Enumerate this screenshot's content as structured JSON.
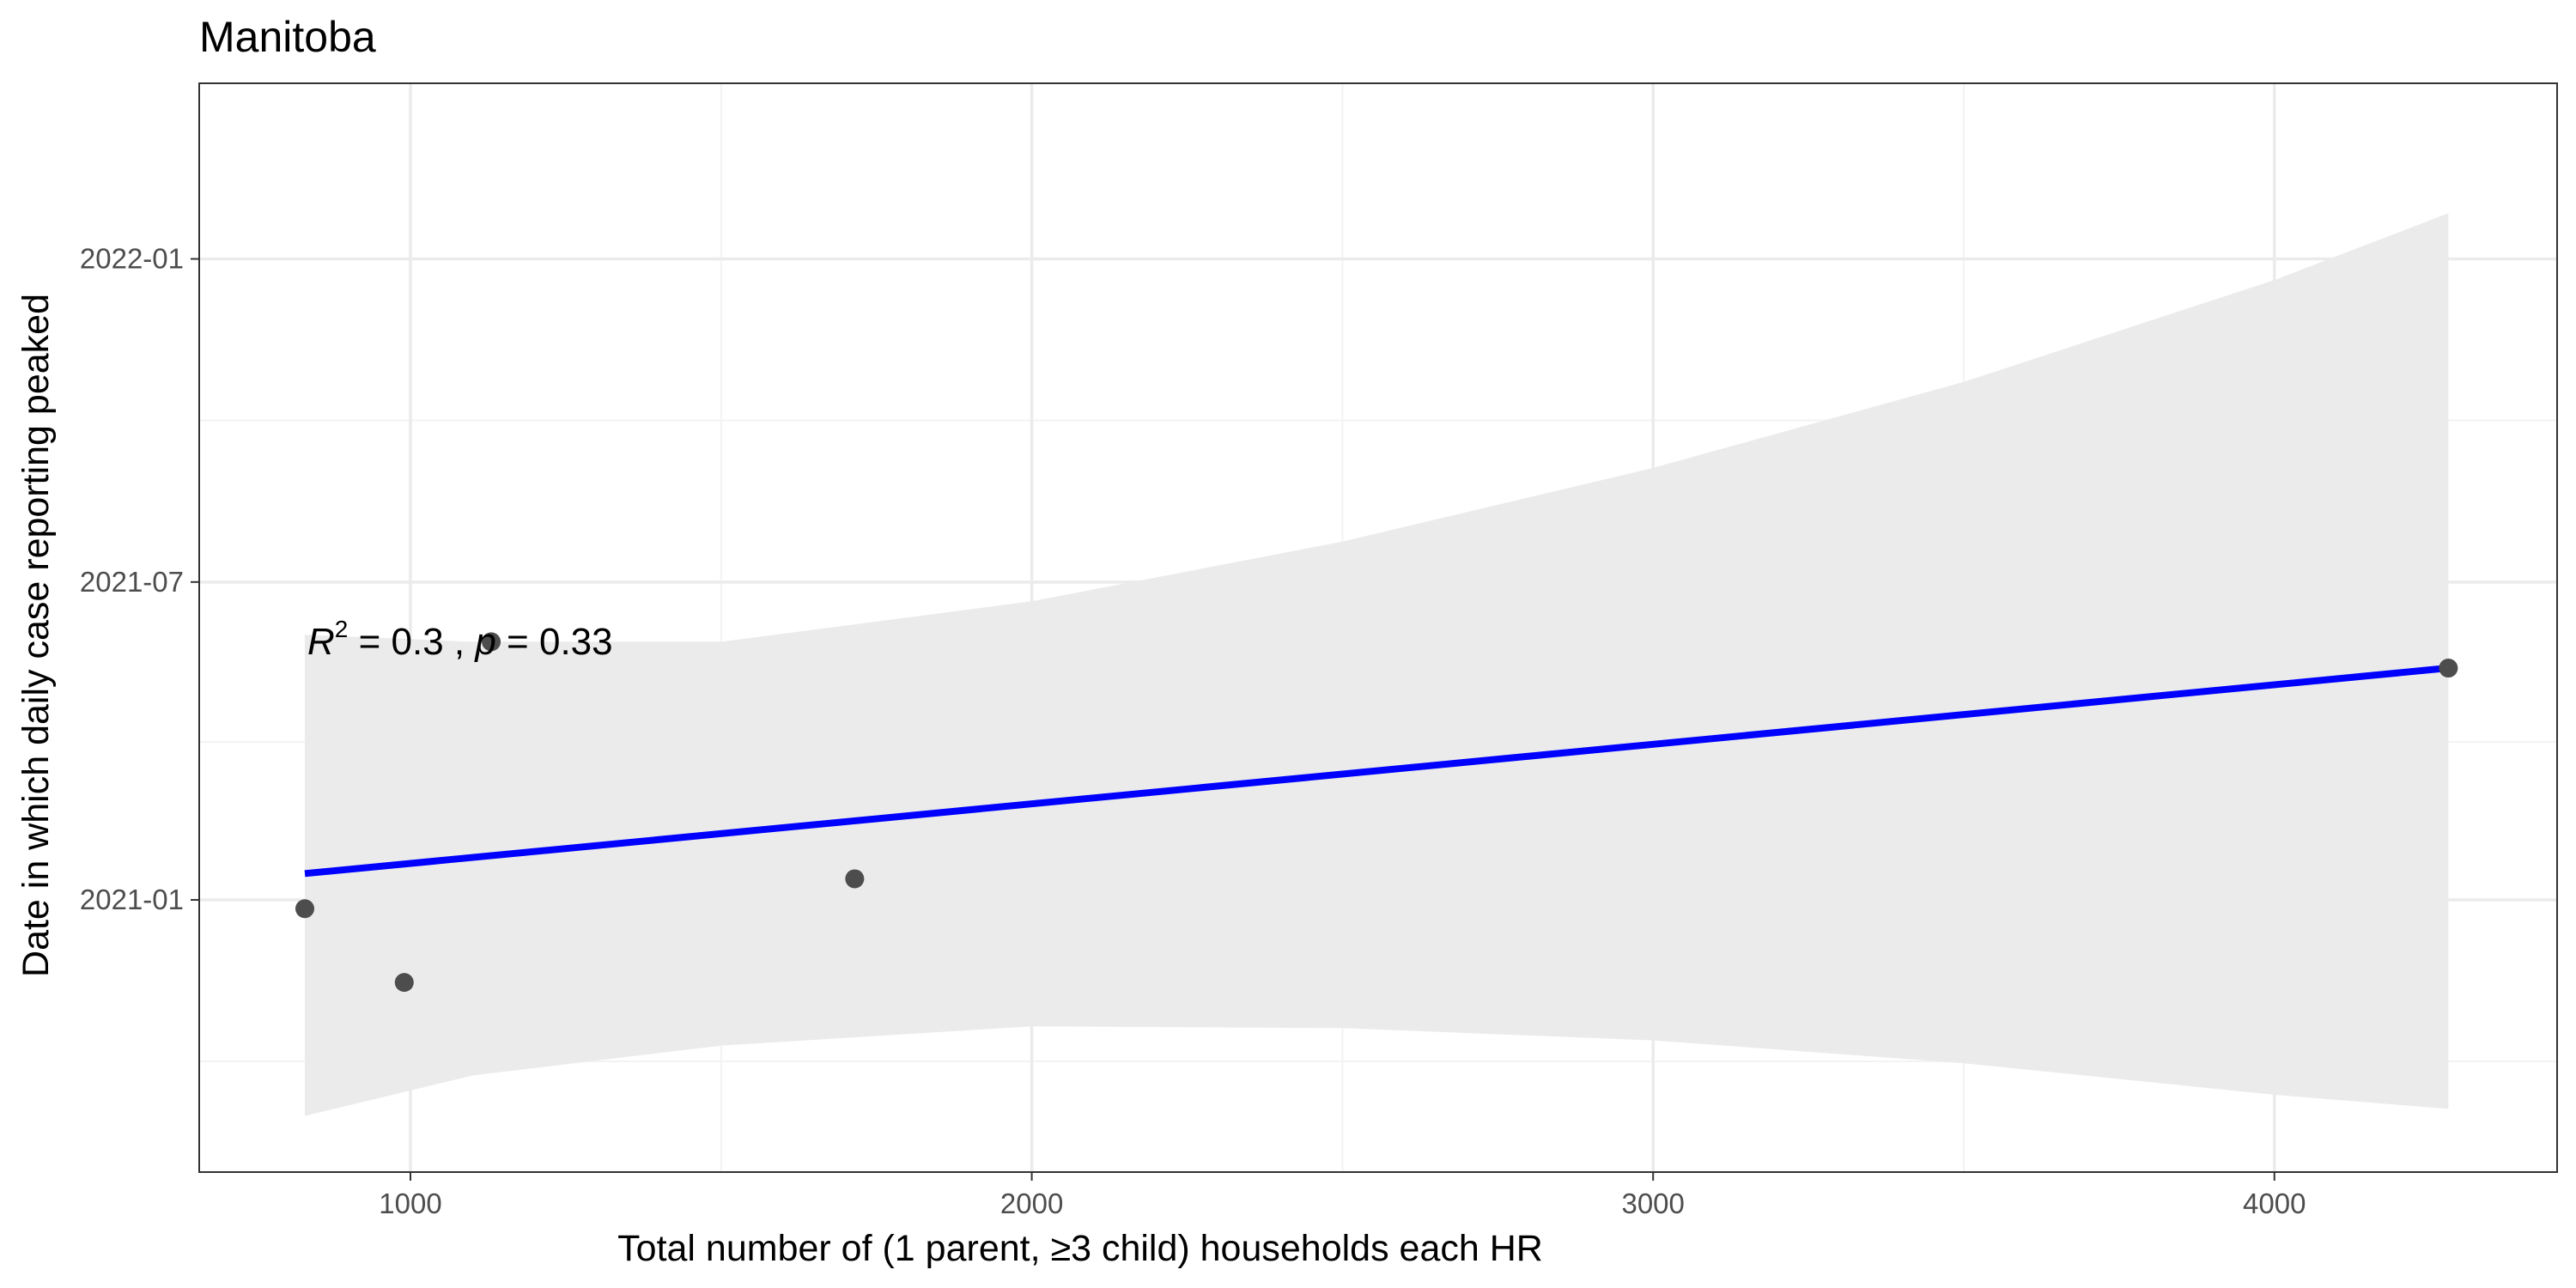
{
  "chart_data": {
    "type": "scatter",
    "title": "Manitoba",
    "xlabel": "Total number of (1 parent, ≥3 child) households each HR",
    "ylabel": "Date in which daily case reporting peaked",
    "xlim": [
      660,
      4455
    ],
    "ylim": [
      "2020-07-30",
      "2022-04-11"
    ],
    "x_ticks": [
      1000,
      2000,
      3000,
      4000
    ],
    "x_tick_labels": [
      "1000",
      "2000",
      "3000",
      "4000"
    ],
    "x_minor_ticks": [
      1500,
      2500,
      3500
    ],
    "y_ticks": [
      "2021-01-01",
      "2021-07-01",
      "2022-01-01"
    ],
    "y_tick_labels": [
      "2021-01",
      "2021-07",
      "2022-01"
    ],
    "y_minor_ticks": [
      "2020-10-01",
      "2021-04-01",
      "2021-10-01"
    ],
    "grid": true,
    "points": [
      {
        "x": 830,
        "y": "2020-12-27"
      },
      {
        "x": 990,
        "y": "2020-11-15"
      },
      {
        "x": 1130,
        "y": "2021-05-28"
      },
      {
        "x": 1715,
        "y": "2021-01-13"
      },
      {
        "x": 4280,
        "y": "2021-05-13"
      }
    ],
    "fit_line": {
      "x": [
        830,
        4280
      ],
      "y": [
        "2021-01-16",
        "2021-05-13"
      ],
      "color": "#0000ff"
    },
    "confidence_band": {
      "x": [
        830,
        1100,
        1500,
        2000,
        2500,
        3000,
        3500,
        4000,
        4280
      ],
      "upper": [
        "2021-06-01",
        "2021-05-28",
        "2021-05-28",
        "2021-06-20",
        "2021-07-24",
        "2021-09-04",
        "2021-10-23",
        "2021-12-20",
        "2022-01-27"
      ],
      "lower": [
        "2020-08-31",
        "2020-09-23",
        "2020-10-10",
        "2020-10-21",
        "2020-10-20",
        "2020-10-13",
        "2020-09-30",
        "2020-09-12",
        "2020-09-04"
      ],
      "color": "#ebebeb"
    },
    "annotation": {
      "r_symbol": "R",
      "r_exp": "2",
      "r_rest": " = 0.3 , ",
      "p_symbol": "p",
      "p_rest": " = 0.33"
    },
    "colors": {
      "points": "#4d4d4d",
      "grid_major": "#ebebeb",
      "grid_minor": "#f3f3f3",
      "panel_border": "#333333",
      "band": "#ebebeb"
    }
  }
}
